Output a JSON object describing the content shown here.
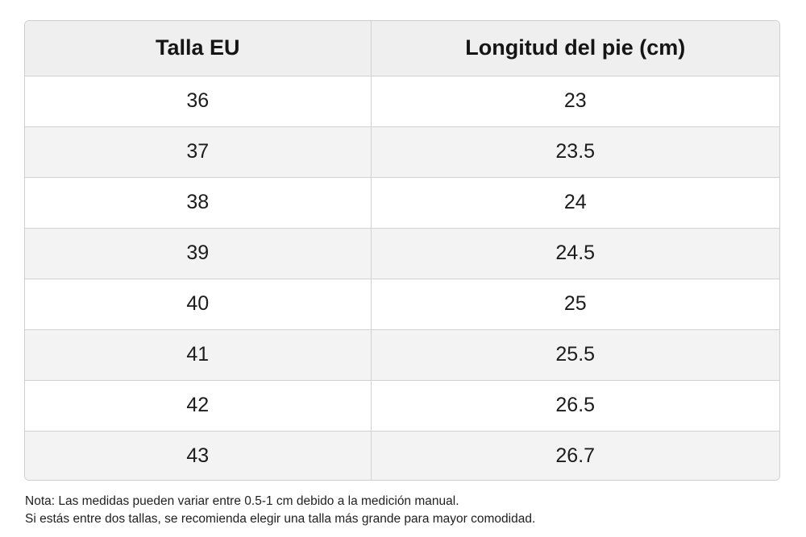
{
  "table": {
    "headers": [
      "Talla EU",
      "Longitud del pie (cm)"
    ],
    "rows": [
      [
        "36",
        "23"
      ],
      [
        "37",
        "23.5"
      ],
      [
        "38",
        "24"
      ],
      [
        "39",
        "24.5"
      ],
      [
        "40",
        "25"
      ],
      [
        "41",
        "25.5"
      ],
      [
        "42",
        "26.5"
      ],
      [
        "43",
        "26.7"
      ]
    ]
  },
  "note": {
    "line1": "Nota: Las medidas pueden variar entre 0.5-1 cm debido a la medición manual.",
    "line2": "Si estás entre dos tallas, se recomienda elegir una talla más grande para mayor comodidad."
  },
  "colors": {
    "header_bg": "#efefef",
    "row_alt_bg": "#f3f3f3",
    "border": "#d2d2d2",
    "text": "#161616"
  }
}
